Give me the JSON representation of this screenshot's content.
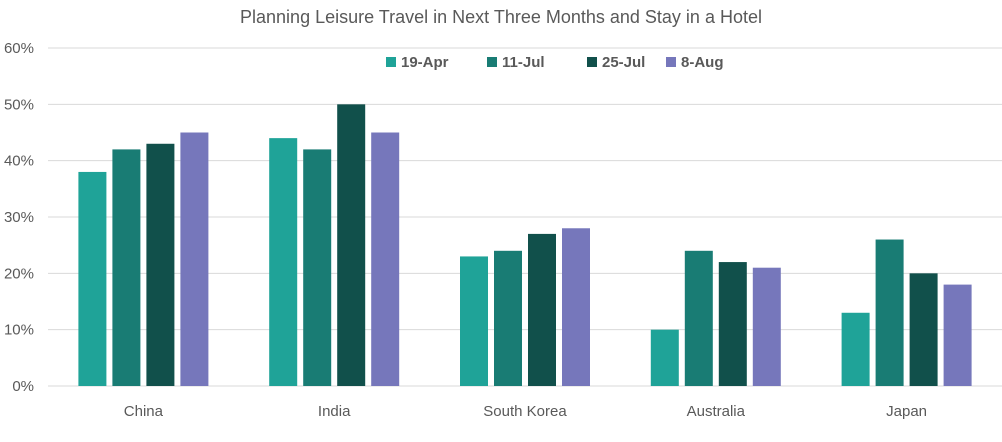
{
  "chart_data": {
    "type": "bar",
    "title": "Planning Leisure Travel in Next Three Months and Stay in a Hotel",
    "categories": [
      "China",
      "India",
      "South Korea",
      "Australia",
      "Japan"
    ],
    "series": [
      {
        "name": "19-Apr",
        "color": "#1fa398",
        "values": [
          38,
          44,
          23,
          10,
          13
        ]
      },
      {
        "name": "11-Jul",
        "color": "#197c74",
        "values": [
          42,
          42,
          24,
          24,
          26
        ]
      },
      {
        "name": "25-Jul",
        "color": "#11504b",
        "values": [
          43,
          50,
          27,
          22,
          20
        ]
      },
      {
        "name": "8-Aug",
        "color": "#7677bb",
        "values": [
          45,
          45,
          28,
          21,
          18
        ]
      }
    ],
    "ylim": [
      0,
      60
    ],
    "yticks": [
      0,
      10,
      20,
      30,
      40,
      50,
      60
    ],
    "ytick_labels": [
      "0%",
      "10%",
      "20%",
      "30%",
      "40%",
      "50%",
      "60%"
    ],
    "xlabel": "",
    "ylabel": "",
    "grid": true,
    "legend_position": "top-center"
  }
}
